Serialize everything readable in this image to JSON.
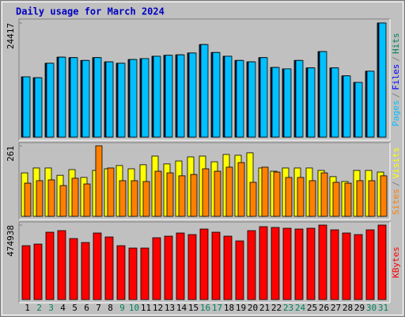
{
  "chart_data": {
    "type": "bar",
    "title": "Daily usage for March 2024",
    "title_color": "#0000c0",
    "categories": [
      "1",
      "2",
      "3",
      "4",
      "5",
      "6",
      "7",
      "8",
      "9",
      "10",
      "11",
      "12",
      "13",
      "14",
      "15",
      "16",
      "17",
      "18",
      "19",
      "20",
      "21",
      "22",
      "23",
      "24",
      "25",
      "26",
      "27",
      "28",
      "29",
      "30",
      "31"
    ],
    "category_colors": [
      "#000000",
      "#00805c",
      "#00805c",
      "#000000",
      "#000000",
      "#000000",
      "#000000",
      "#000000",
      "#00805c",
      "#00805c",
      "#000000",
      "#000000",
      "#000000",
      "#000000",
      "#000000",
      "#00805c",
      "#00805c",
      "#000000",
      "#000000",
      "#000000",
      "#000000",
      "#000000",
      "#00805c",
      "#00805c",
      "#000000",
      "#000000",
      "#000000",
      "#000000",
      "#000000",
      "#00805c",
      "#00805c"
    ],
    "panels": [
      {
        "ylim": [
          0,
          24417
        ],
        "yticks": [
          24417
        ],
        "legend_separator": "/",
        "series": [
          {
            "name": "Hits",
            "color": "#00805c",
            "values": [
              12900,
              12700,
              15800,
              17100,
              17000,
              16400,
              17000,
              16100,
              15800,
              16600,
              16800,
              17300,
              17500,
              17600,
              18000,
              19800,
              18100,
              17300,
              16400,
              16100,
              17000,
              14900,
              14600,
              16400,
              14800,
              18300,
              14800,
              13100,
              11700,
              14100,
              24417
            ]
          },
          {
            "name": "Files",
            "color": "#0000ff",
            "values": [
              12900,
              12700,
              15800,
              17100,
              17000,
              16400,
              17000,
              16100,
              15800,
              16600,
              16800,
              17300,
              17500,
              17600,
              18000,
              19800,
              18100,
              17300,
              16400,
              16100,
              17000,
              14900,
              14600,
              16400,
              14800,
              18300,
              14800,
              13100,
              11700,
              14100,
              24417
            ]
          },
          {
            "name": "Pages",
            "color": "#00c0ff",
            "values": [
              12900,
              12700,
              15800,
              17100,
              17000,
              16400,
              17000,
              16100,
              15800,
              16600,
              16800,
              17300,
              17500,
              17600,
              18000,
              19800,
              18100,
              17300,
              16400,
              16100,
              17000,
              14900,
              14600,
              16400,
              14800,
              18300,
              14800,
              13100,
              11700,
              14100,
              24417
            ]
          }
        ]
      },
      {
        "ylim": [
          0,
          261
        ],
        "yticks": [
          261
        ],
        "legend_separator": "/",
        "series": [
          {
            "name": "Visits",
            "color": "#ffff00",
            "values": [
              161,
              179,
              179,
              152,
              173,
              144,
              170,
              176,
              188,
              176,
              191,
              223,
              194,
              205,
              220,
              223,
              202,
              229,
              226,
              235,
              179,
              167,
              179,
              179,
              179,
              170,
              147,
              129,
              170,
              170,
              164
            ]
          },
          {
            "name": "Sites",
            "color": "#ff8000",
            "values": [
              123,
              132,
              135,
              114,
              141,
              120,
              261,
              179,
              132,
              132,
              129,
              167,
              161,
              150,
              155,
              176,
              167,
              182,
              199,
              126,
              182,
              164,
              144,
              144,
              132,
              161,
              126,
              123,
              132,
              132,
              150
            ]
          }
        ]
      },
      {
        "ylim": [
          0,
          474938
        ],
        "yticks": [
          474938
        ],
        "legend_separator": "/",
        "series": [
          {
            "name": "KBytes",
            "color": "#ff0000",
            "values": [
              343570,
              353675,
              429463,
              439568,
              389043,
              363780,
              424410,
              399148,
              343570,
              328413,
              328413,
              394095,
              404200,
              424410,
              414305,
              449673,
              429463,
              404200,
              373885,
              439568,
              464830,
              459778,
              454725,
              449673,
              454725,
              474938,
              444620,
              424410,
              414305,
              444620,
              474938
            ]
          }
        ]
      }
    ]
  }
}
